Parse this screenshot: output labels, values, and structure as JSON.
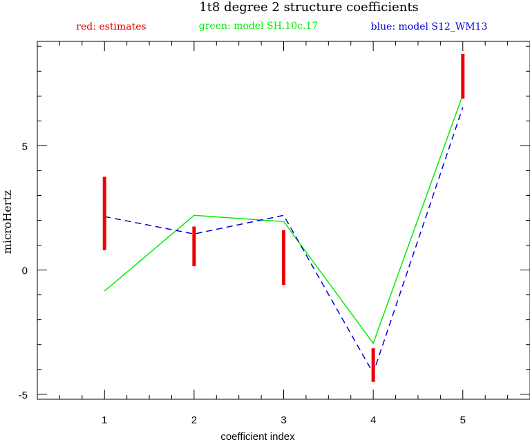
{
  "chart_data": {
    "type": "line",
    "title": "1t8 degree 2 structure coefficients",
    "xlabel": "coefficient index",
    "ylabel": "microHertz",
    "xlim": [
      0.25,
      5.75
    ],
    "ylim": [
      -5.2,
      9.2
    ],
    "x_ticks": [
      1,
      2,
      3,
      4,
      5
    ],
    "y_ticks": [
      -5,
      0,
      5
    ],
    "x_tick_labels": [
      "1",
      "2",
      "3",
      "4",
      "5"
    ],
    "y_tick_labels": [
      "-5",
      "0",
      "5"
    ],
    "legend": [
      {
        "text": "red: estimates",
        "color": "#ee0000"
      },
      {
        "text": "green: model SH.10c.17",
        "color": "#00ee00"
      },
      {
        "text": "blue: model S12_WM13",
        "color": "#0000dd"
      }
    ],
    "estimates": {
      "name": "estimates",
      "color": "#ee0000",
      "x": [
        1,
        2,
        3,
        4,
        5
      ],
      "low": [
        0.8,
        0.15,
        -0.6,
        -4.5,
        6.9
      ],
      "high": [
        3.75,
        1.75,
        1.6,
        -3.15,
        8.7
      ]
    },
    "series": [
      {
        "name": "model SH.10c.17",
        "color": "#00ee00",
        "style": "solid",
        "x": [
          1,
          2,
          3,
          4,
          5
        ],
        "values": [
          -0.85,
          2.2,
          1.95,
          -2.95,
          7.05
        ]
      },
      {
        "name": "model S12_WM13",
        "color": "#0000dd",
        "style": "dashed",
        "x": [
          1,
          2,
          3,
          4,
          5
        ],
        "values": [
          2.15,
          1.45,
          2.2,
          -4.15,
          6.55
        ]
      }
    ]
  }
}
